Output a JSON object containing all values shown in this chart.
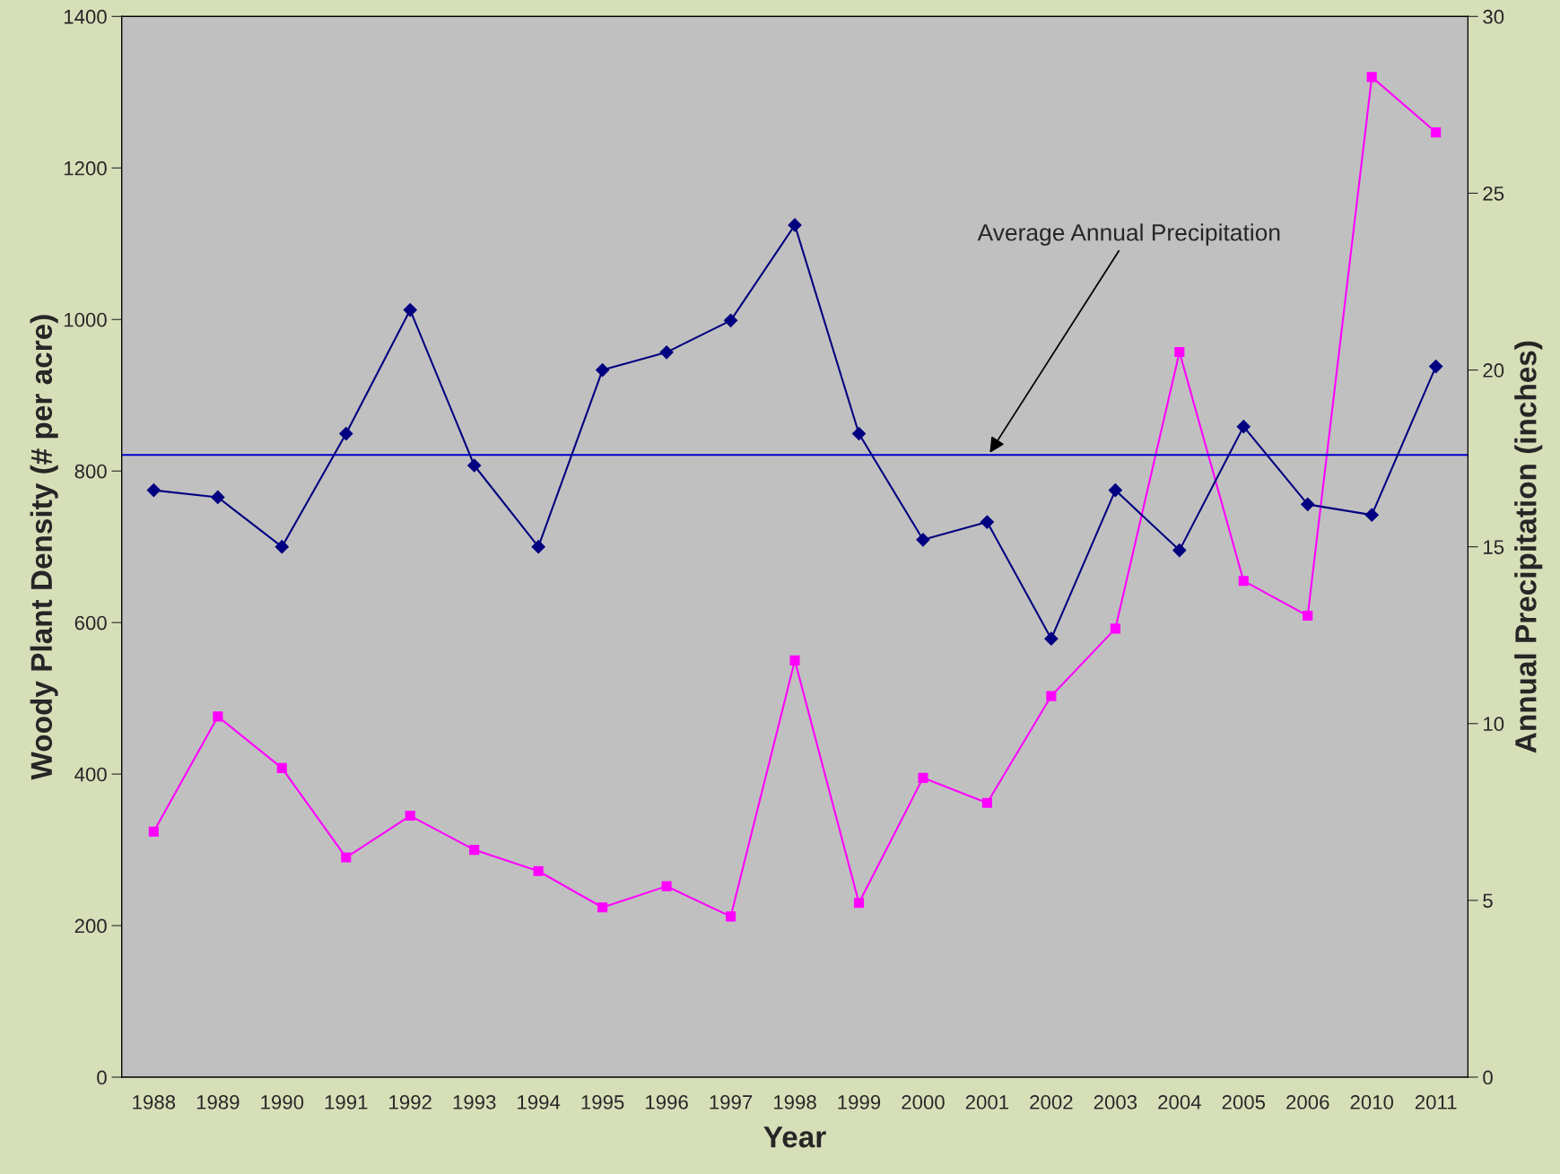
{
  "chart_data": {
    "type": "line",
    "xlabel": "Year",
    "ylabel": "Woody Plant Density (# per acre)",
    "y2label": "Annual Precipitation (inches)",
    "categories": [
      "1988",
      "1989",
      "1990",
      "1991",
      "1992",
      "1993",
      "1994",
      "1995",
      "1996",
      "1997",
      "1998",
      "1999",
      "2000",
      "2001",
      "2002",
      "2003",
      "2004",
      "2005",
      "2006",
      "2010",
      "2011"
    ],
    "series": [
      {
        "color": "#000080",
        "marker": "diamond",
        "axis": "y2",
        "values": [
          16.6,
          16.4,
          15.0,
          18.2,
          21.7,
          17.3,
          15.0,
          20.0,
          20.5,
          21.4,
          24.1,
          18.2,
          15.2,
          15.7,
          12.4,
          16.6,
          14.9,
          18.4,
          16.2,
          15.9,
          20.1
        ]
      },
      {
        "color": "#ff00ff",
        "marker": "square",
        "values": [
          324,
          476,
          408,
          290,
          345,
          300,
          272,
          224,
          252,
          212,
          550,
          230,
          395,
          362,
          503,
          592,
          957,
          655,
          609,
          1320,
          1247
        ]
      }
    ],
    "ylim": [
      0,
      1400
    ],
    "yticks": [
      0,
      200,
      400,
      600,
      800,
      1000,
      1200,
      1400
    ],
    "y2lim": [
      0,
      30
    ],
    "y2ticks": [
      0,
      5,
      10,
      15,
      20,
      25,
      30
    ],
    "ref_lines": [
      {
        "axis": "y2",
        "value": 17.6,
        "label": "Average Annual Precipitation",
        "color": "#0000cc"
      }
    ],
    "grid": false,
    "legend": false,
    "line_style": "solid"
  }
}
